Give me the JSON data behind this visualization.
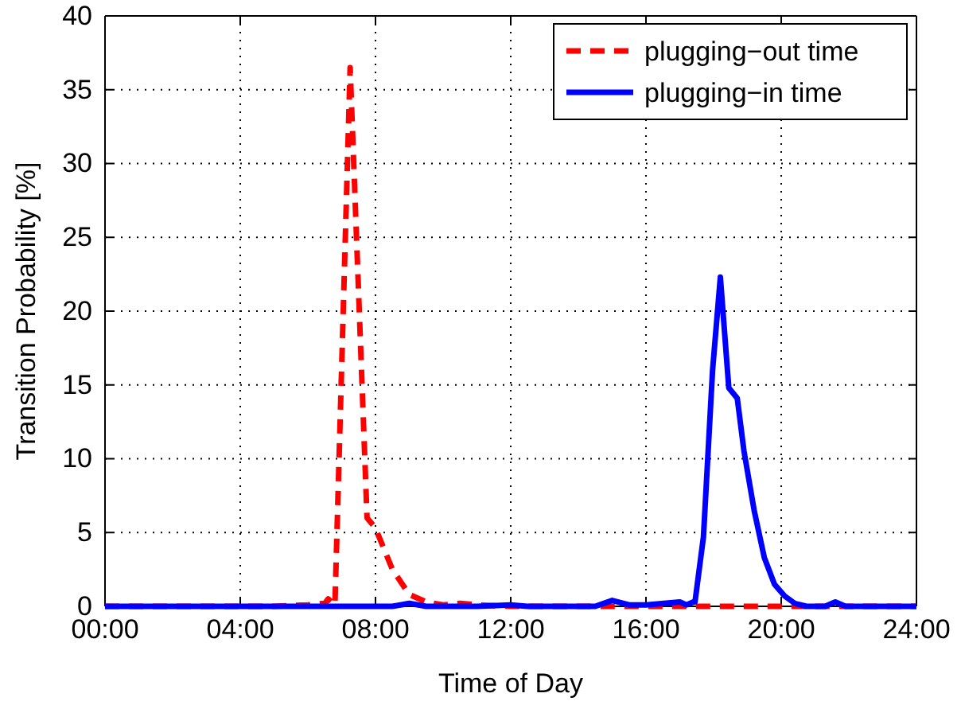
{
  "chart_data": {
    "type": "line",
    "xlabel": "Time of Day",
    "ylabel": "Transition Probability [%]",
    "xlim": [
      0,
      24
    ],
    "ylim": [
      0,
      40
    ],
    "xticks": [
      {
        "value": 0,
        "label": "00:00"
      },
      {
        "value": 4,
        "label": "04:00"
      },
      {
        "value": 8,
        "label": "08:00"
      },
      {
        "value": 12,
        "label": "12:00"
      },
      {
        "value": 16,
        "label": "16:00"
      },
      {
        "value": 20,
        "label": "20:00"
      },
      {
        "value": 24,
        "label": "24:00"
      }
    ],
    "yticks": [
      0,
      5,
      10,
      15,
      20,
      25,
      30,
      35,
      40
    ],
    "grid": true,
    "legend": "top right",
    "marker": "none",
    "series": [
      {
        "name": "plugging−out time",
        "color": "#ff0000",
        "line_style": "dashed",
        "x": [
          0,
          5,
          6,
          6.5,
          6.6,
          6.8,
          7.25,
          7.75,
          8.0,
          8.5,
          9.0,
          9.5,
          10,
          10.5,
          11,
          12,
          24
        ],
        "values": [
          0,
          0,
          0.1,
          0.2,
          0.5,
          0.1,
          36.5,
          6,
          5.3,
          2.5,
          0.8,
          0.3,
          0.1,
          0.2,
          0.1,
          0,
          0
        ]
      },
      {
        "name": "plugging−in time",
        "color": "#0000ff",
        "line_style": "solid",
        "x": [
          0,
          8.5,
          9.0,
          9.5,
          11,
          12,
          12.5,
          14.5,
          15.0,
          15.5,
          16,
          17.0,
          17.2,
          17.4,
          17.45,
          17.7,
          17.97,
          18.2,
          18.45,
          18.7,
          18.9,
          19.2,
          19.5,
          19.8,
          20.1,
          20.4,
          20.75,
          21.3,
          21.6,
          21.9,
          24
        ],
        "values": [
          0,
          0,
          0.2,
          0,
          0,
          0.1,
          0,
          0,
          0.4,
          0.1,
          0.1,
          0.3,
          0.1,
          0.3,
          0.3,
          4.7,
          16,
          22.3,
          14.8,
          14.1,
          10.5,
          6.5,
          3.3,
          1.5,
          0.7,
          0.2,
          0,
          0,
          0.3,
          0,
          0
        ]
      }
    ]
  }
}
